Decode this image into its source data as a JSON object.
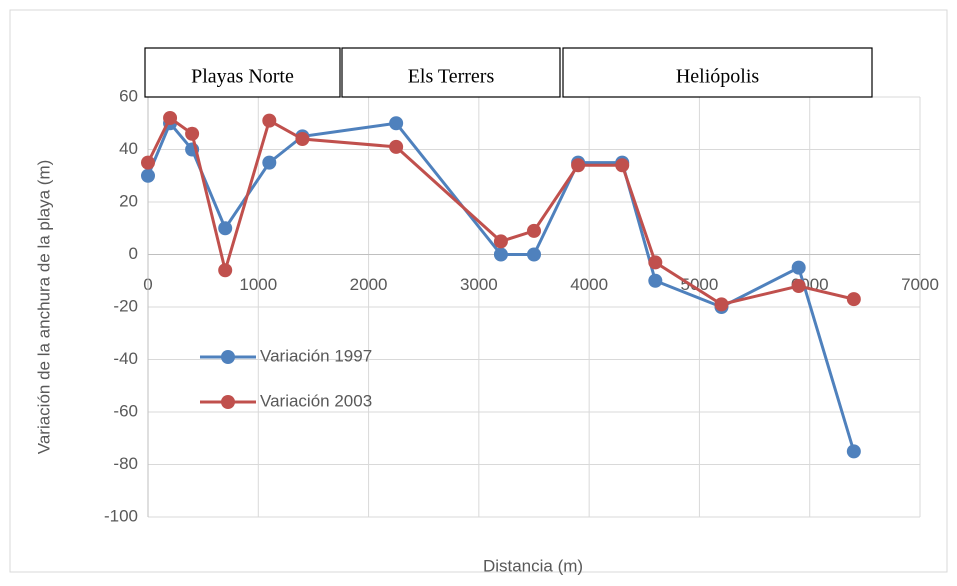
{
  "chart_data": {
    "type": "line",
    "x_label": "Distancia (m)",
    "y_label": "Variación de la anchura de la playa (m)",
    "annotations": [
      "Playas Norte",
      "Els Terrers",
      "Heliópolis"
    ],
    "x": [
      0,
      200,
      400,
      700,
      1100,
      1400,
      2250,
      3200,
      3500,
      3900,
      4300,
      4600,
      5200,
      5900,
      6400
    ],
    "series": [
      {
        "name": "Variación 1997",
        "color": "#4f81bd",
        "values": [
          30,
          50,
          40,
          10,
          35,
          45,
          50,
          0,
          0,
          35,
          35,
          -10,
          -20,
          -5,
          -75
        ]
      },
      {
        "name": "Variación 2003",
        "color": "#c0504d",
        "values": [
          35,
          52,
          46,
          -6,
          51,
          44,
          41,
          5,
          9,
          34,
          34,
          -3,
          -19,
          -12,
          -17
        ]
      }
    ],
    "xlim": [
      0,
      7000
    ],
    "xticks": [
      0,
      1000,
      2000,
      3000,
      4000,
      5000,
      6000,
      7000
    ],
    "ylim": [
      -100,
      60
    ],
    "yticks": [
      -100,
      -80,
      -60,
      -40,
      -20,
      0,
      20,
      40,
      60
    ],
    "grid": true
  }
}
